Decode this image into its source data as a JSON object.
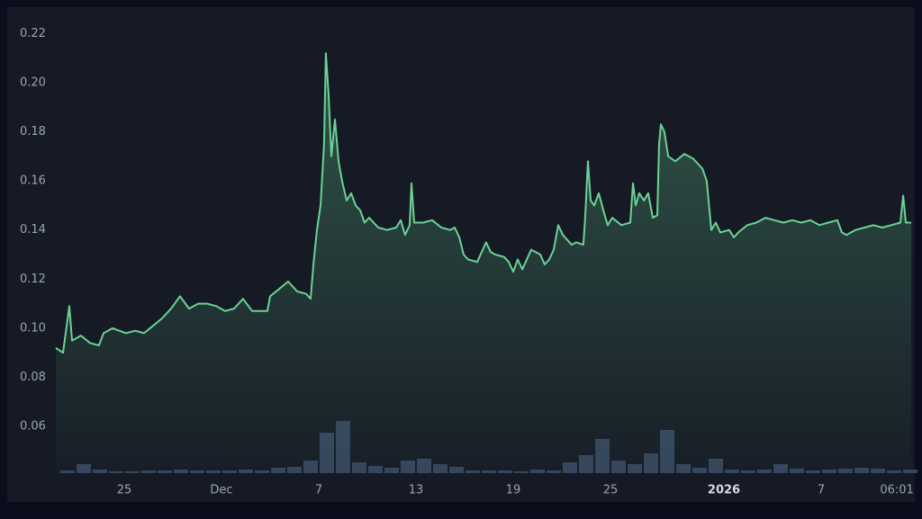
{
  "chart_data": {
    "type": "area",
    "color": "#6ad394",
    "volume_color": "#34435c",
    "ylim": [
      0.041,
      0.23
    ],
    "yticks": [
      0.06,
      0.08,
      {
        "value": 0.1,
        "label": "0.10"
      },
      0.12,
      0.14,
      0.16,
      0.18,
      {
        "value": 0.2,
        "label": "0.20"
      },
      0.22
    ],
    "xlim": [
      -10.3,
      42.7
    ],
    "xticks": [
      {
        "value": -6,
        "label": "25"
      },
      {
        "value": 0,
        "label": "Dec"
      },
      {
        "value": 6,
        "label": "7"
      },
      {
        "value": 12,
        "label": "13"
      },
      {
        "value": 18,
        "label": "19"
      },
      {
        "value": 24,
        "label": "25"
      },
      {
        "value": 31,
        "label": "2026",
        "bold": true
      },
      {
        "value": 37,
        "label": "7"
      },
      {
        "value": 41.67,
        "label": "06:01"
      }
    ],
    "x": [
      -10.22,
      -9.78,
      -9.39,
      -9.22,
      -8.67,
      -8.11,
      -7.56,
      -7.28,
      -6.72,
      -5.89,
      -5.33,
      -4.78,
      -4.22,
      -3.67,
      -3.11,
      -2.56,
      -2,
      -1.44,
      -0.89,
      -0.33,
      0.22,
      0.78,
      1.33,
      1.89,
      2.44,
      2.83,
      3,
      3.56,
      4.11,
      4.67,
      5.22,
      5.5,
      5.67,
      5.89,
      6.11,
      6.33,
      6.44,
      6.61,
      6.78,
      7,
      7.22,
      7.44,
      7.72,
      8,
      8.28,
      8.56,
      8.83,
      9.11,
      9.67,
      10.22,
      10.78,
      11.06,
      11.33,
      11.61,
      11.72,
      11.89,
      12.44,
      13,
      13.56,
      14.11,
      14.39,
      14.67,
      14.94,
      15.22,
      15.78,
      16.33,
      16.61,
      16.89,
      17.44,
      17.72,
      18,
      18.28,
      18.56,
      19.11,
      19.67,
      19.94,
      20.22,
      20.5,
      20.78,
      21.06,
      21.33,
      21.61,
      21.89,
      22.33,
      22.44,
      22.61,
      22.78,
      23,
      23.28,
      23.56,
      23.83,
      24.11,
      24.67,
      25.22,
      25.39,
      25.56,
      25.78,
      26.06,
      26.33,
      26.61,
      26.89,
      27,
      27.11,
      27.33,
      27.56,
      28,
      28.56,
      29.11,
      29.67,
      29.94,
      30.11,
      30.22,
      30.5,
      30.78,
      31.33,
      31.61,
      31.89,
      32.44,
      33,
      33.56,
      34.11,
      34.67,
      35.22,
      35.78,
      36.33,
      36.89,
      37.44,
      38,
      38.28,
      38.56,
      39.11,
      39.67,
      40.22,
      40.78,
      41.33,
      41.89,
      42.06,
      42.22,
      42.56
    ],
    "values": [
      0.092,
      0.09,
      0.109,
      0.095,
      0.097,
      0.094,
      0.093,
      0.098,
      0.1,
      0.098,
      0.099,
      0.098,
      0.101,
      0.104,
      0.108,
      0.113,
      0.108,
      0.11,
      0.11,
      0.109,
      0.107,
      0.108,
      0.112,
      0.107,
      0.107,
      0.107,
      0.113,
      0.116,
      0.119,
      0.115,
      0.114,
      0.112,
      0.126,
      0.14,
      0.15,
      0.175,
      0.212,
      0.195,
      0.17,
      0.185,
      0.168,
      0.16,
      0.152,
      0.155,
      0.15,
      0.148,
      0.143,
      0.145,
      0.141,
      0.14,
      0.141,
      0.144,
      0.138,
      0.142,
      0.159,
      0.143,
      0.143,
      0.144,
      0.141,
      0.14,
      0.141,
      0.137,
      0.13,
      0.128,
      0.127,
      0.135,
      0.131,
      0.13,
      0.129,
      0.127,
      0.123,
      0.128,
      0.124,
      0.132,
      0.13,
      0.126,
      0.128,
      0.132,
      0.142,
      0.138,
      0.136,
      0.134,
      0.135,
      0.134,
      0.145,
      0.168,
      0.152,
      0.15,
      0.155,
      0.148,
      0.142,
      0.145,
      0.142,
      0.143,
      0.159,
      0.15,
      0.155,
      0.152,
      0.155,
      0.145,
      0.146,
      0.175,
      0.183,
      0.18,
      0.17,
      0.168,
      0.171,
      0.169,
      0.165,
      0.16,
      0.148,
      0.14,
      0.143,
      0.139,
      0.14,
      0.137,
      0.139,
      0.142,
      0.143,
      0.145,
      0.144,
      0.143,
      0.144,
      0.143,
      0.144,
      0.142,
      0.143,
      0.144,
      0.139,
      0.138,
      0.14,
      0.141,
      0.142,
      0.141,
      0.142,
      0.143,
      0.154,
      0.143,
      0.143
    ],
    "volume": {
      "y2lim": [
        0,
        516
      ],
      "x": [
        -10,
        -9,
        -8,
        -7,
        -6,
        -5,
        -4,
        -3,
        -2,
        -1,
        0,
        1,
        2,
        3,
        4,
        5,
        6,
        7,
        8,
        9,
        10,
        11,
        12,
        13,
        14,
        15,
        16,
        17,
        18,
        19,
        20,
        21,
        22,
        23,
        24,
        25,
        26,
        27,
        28,
        29,
        30,
        31,
        32,
        33,
        34,
        35,
        36,
        37,
        38,
        39,
        40,
        41,
        42
      ],
      "values": [
        3,
        10,
        4,
        2,
        2,
        3,
        3,
        4,
        3,
        3,
        3,
        4,
        3,
        6,
        7,
        14,
        45,
        58,
        12,
        8,
        6,
        14,
        16,
        10,
        7,
        3,
        3,
        3,
        2,
        4,
        3,
        12,
        20,
        38,
        14,
        10,
        22,
        48,
        10,
        6,
        16,
        4,
        3,
        4,
        10,
        5,
        3,
        4,
        5,
        6,
        5,
        3,
        4
      ]
    }
  }
}
